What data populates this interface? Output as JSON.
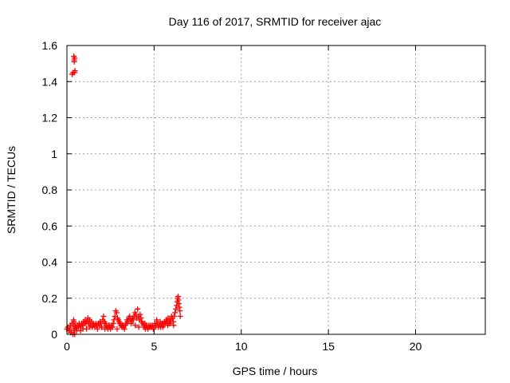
{
  "chart_data": {
    "type": "scatter",
    "title": "Day 116 of 2017, SRMTID for receiver ajac",
    "xlabel": "GPS time / hours",
    "ylabel": "SRMTID / TECUs",
    "xlim": [
      0,
      24
    ],
    "ylim": [
      0,
      1.6
    ],
    "x_ticks": [
      0,
      5,
      10,
      15,
      20
    ],
    "x_tick_labels": [
      "0",
      "5",
      "10",
      "15",
      "20"
    ],
    "y_ticks": [
      0,
      0.2,
      0.4,
      0.6,
      0.8,
      1,
      1.2,
      1.4,
      1.6
    ],
    "y_tick_labels": [
      "0",
      "0.2",
      "0.4",
      "0.6",
      "0.8",
      "1",
      "1.2",
      "1.4",
      "1.6"
    ],
    "grid": true,
    "legend": "none",
    "marker": "plus",
    "color": "#ff0000",
    "series": [
      {
        "x": [
          0.0,
          0.05,
          0.1,
          0.15,
          0.2,
          0.25,
          0.3,
          0.35,
          0.4,
          0.42,
          0.45,
          0.48,
          0.5,
          0.55,
          0.6,
          0.65,
          0.7,
          0.75,
          0.8,
          0.85,
          0.9,
          0.95,
          1.0,
          1.05,
          1.1,
          1.15,
          1.2,
          1.25,
          1.3,
          1.35,
          1.4,
          1.45,
          1.5,
          1.55,
          1.6,
          1.65,
          1.7,
          1.75,
          1.8,
          1.85,
          1.9,
          1.95,
          2.0,
          2.05,
          2.1,
          2.15,
          2.2,
          2.25,
          2.3,
          2.35,
          2.4,
          2.45,
          2.5,
          2.55,
          2.6,
          2.65,
          2.7,
          2.75,
          2.8,
          2.85,
          2.9,
          2.95,
          3.0,
          3.05,
          3.1,
          3.15,
          3.2,
          3.25,
          3.3,
          3.35,
          3.4,
          3.45,
          3.5,
          3.55,
          3.6,
          3.65,
          3.7,
          3.75,
          3.8,
          3.85,
          3.9,
          3.95,
          4.0,
          4.05,
          4.1,
          4.15,
          4.2,
          4.25,
          4.3,
          4.35,
          4.4,
          4.45,
          4.5,
          4.55,
          4.6,
          4.65,
          4.7,
          4.75,
          4.8,
          4.85,
          4.9,
          4.95,
          5.0,
          5.05,
          5.1,
          5.15,
          5.2,
          5.25,
          5.3,
          5.35,
          5.4,
          5.45,
          5.5,
          5.55,
          5.6,
          5.65,
          5.7,
          5.75,
          5.8,
          5.85,
          5.9,
          5.95,
          6.0,
          6.05,
          6.1,
          6.15,
          6.2,
          6.25,
          6.3,
          6.32,
          6.35,
          6.38,
          6.4,
          6.42,
          6.45,
          6.48,
          6.5,
          0.38,
          0.4,
          0.42,
          0.44,
          0.4,
          0.42,
          0.44,
          0.46,
          0.3,
          0.35,
          0.42,
          0.22,
          0.55,
          0.65,
          0.78,
          0.92,
          1.12,
          1.32,
          1.48,
          1.72,
          1.98,
          2.18,
          2.42,
          2.62,
          2.88,
          3.02,
          3.22,
          3.48,
          3.68,
          3.92,
          4.12,
          4.28,
          4.48,
          4.72,
          4.98,
          5.12,
          5.38,
          5.52,
          5.78,
          5.92,
          6.12
        ],
        "y": [
          0.03,
          0.04,
          0.02,
          0.03,
          0.05,
          0.01,
          0.06,
          0.0,
          0.04,
          0.03,
          0.0,
          0.05,
          0.04,
          0.03,
          0.05,
          0.04,
          0.06,
          0.05,
          0.04,
          0.06,
          0.05,
          0.07,
          0.06,
          0.08,
          0.06,
          0.07,
          0.09,
          0.06,
          0.08,
          0.05,
          0.07,
          0.04,
          0.06,
          0.05,
          0.04,
          0.06,
          0.05,
          0.03,
          0.06,
          0.05,
          0.07,
          0.06,
          0.04,
          0.08,
          0.1,
          0.07,
          0.06,
          0.05,
          0.04,
          0.03,
          0.05,
          0.04,
          0.03,
          0.05,
          0.04,
          0.06,
          0.08,
          0.1,
          0.13,
          0.12,
          0.09,
          0.08,
          0.07,
          0.06,
          0.05,
          0.04,
          0.05,
          0.04,
          0.03,
          0.05,
          0.06,
          0.08,
          0.07,
          0.09,
          0.1,
          0.08,
          0.07,
          0.09,
          0.08,
          0.1,
          0.12,
          0.11,
          0.09,
          0.14,
          0.1,
          0.08,
          0.11,
          0.09,
          0.07,
          0.06,
          0.05,
          0.04,
          0.03,
          0.05,
          0.04,
          0.03,
          0.05,
          0.04,
          0.05,
          0.04,
          0.05,
          0.03,
          0.04,
          0.06,
          0.05,
          0.08,
          0.06,
          0.04,
          0.05,
          0.07,
          0.05,
          0.06,
          0.04,
          0.05,
          0.07,
          0.06,
          0.08,
          0.07,
          0.09,
          0.06,
          0.08,
          0.07,
          0.1,
          0.09,
          0.07,
          0.1,
          0.12,
          0.14,
          0.16,
          0.18,
          0.2,
          0.21,
          0.19,
          0.17,
          0.15,
          0.13,
          0.1,
          0.08,
          0.07,
          1.52,
          1.53,
          1.54,
          1.51,
          1.45,
          1.46,
          1.44,
          1.45,
          0.02,
          0.01,
          0.02,
          0.04,
          0.02,
          0.03,
          0.03,
          0.04,
          0.05,
          0.05,
          0.04,
          0.03,
          0.05,
          0.04,
          0.03,
          0.06,
          0.05,
          0.07,
          0.06,
          0.05,
          0.04,
          0.07,
          0.06,
          0.04,
          0.03,
          0.05,
          0.04,
          0.06,
          0.05,
          0.06,
          0.05
        ]
      }
    ]
  }
}
